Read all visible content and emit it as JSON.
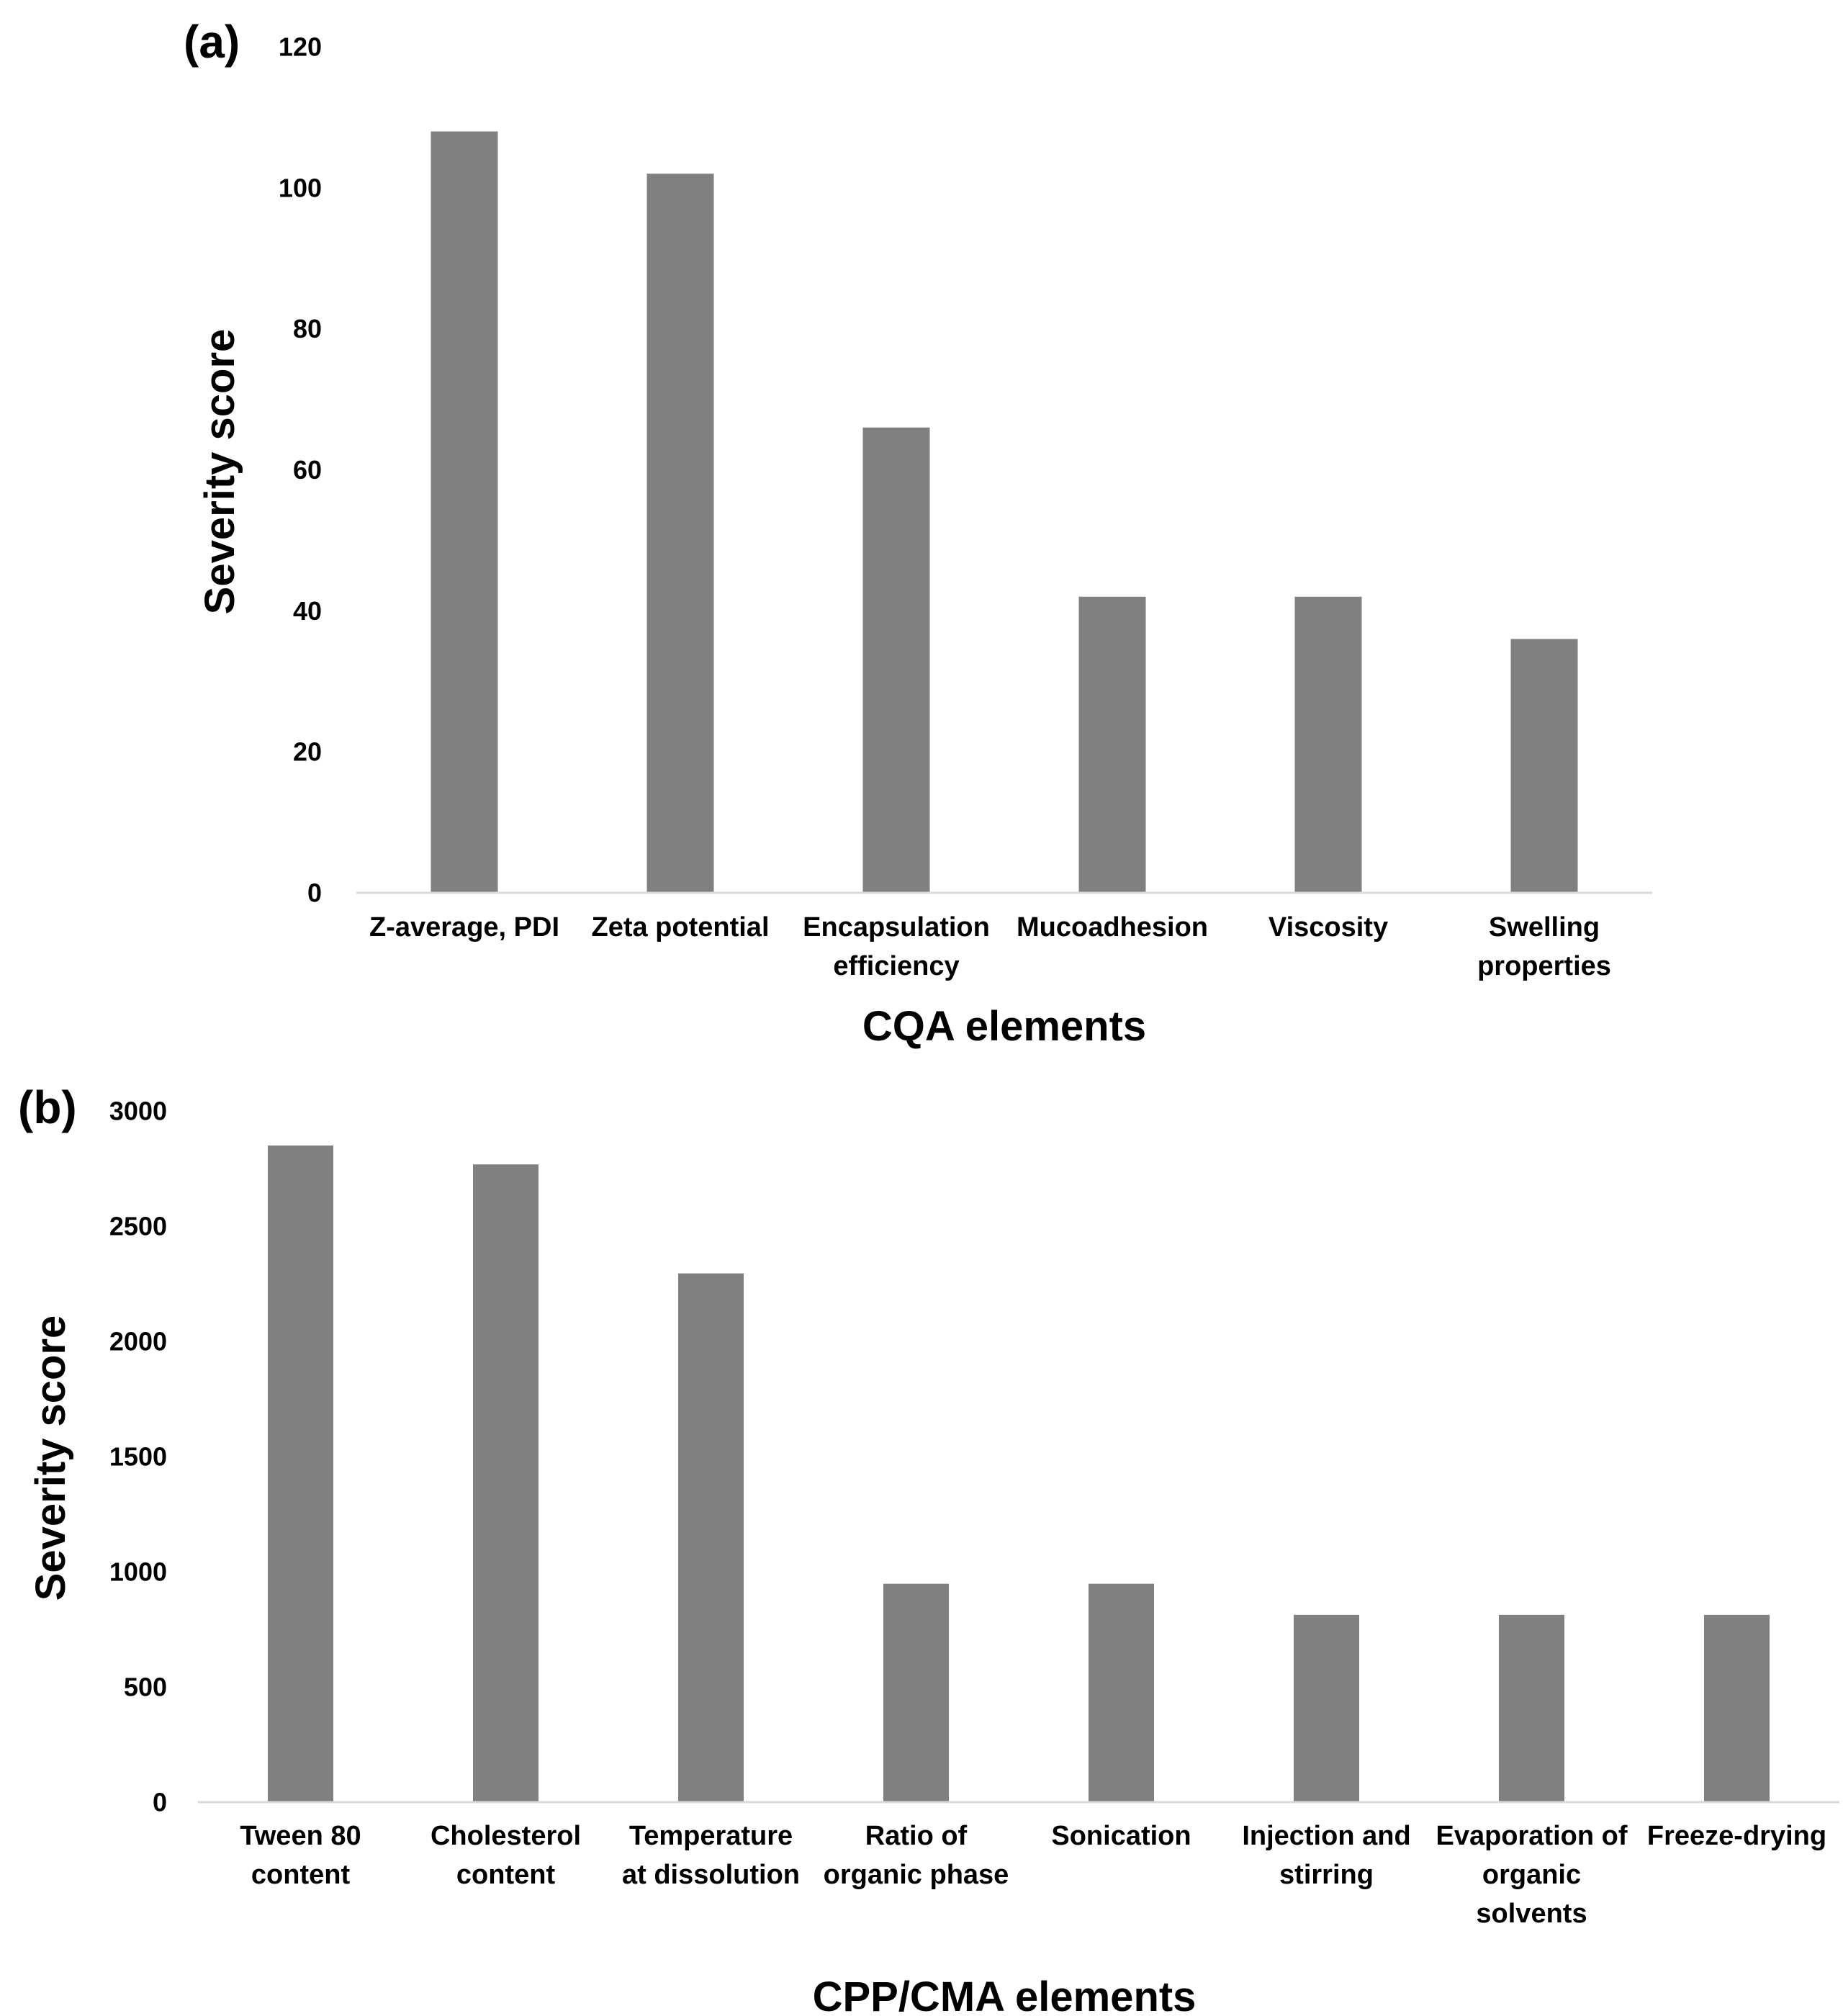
{
  "chart_data": [
    {
      "type": "bar",
      "panel_label": "(a)",
      "title": "",
      "xlabel": "CQA elements",
      "ylabel": "Severity score",
      "ylim": [
        0,
        120
      ],
      "yticks": [
        0,
        20,
        40,
        60,
        80,
        100,
        120
      ],
      "grid": false,
      "categories": [
        [
          "Z-average, PDI"
        ],
        [
          "Zeta potential"
        ],
        [
          "Encapsulation",
          "efficiency"
        ],
        [
          "Mucoadhesion"
        ],
        [
          "Viscosity"
        ],
        [
          "Swelling",
          "properties"
        ]
      ],
      "values": [
        108,
        102,
        66,
        42,
        42,
        36
      ],
      "bar_color": "#808080"
    },
    {
      "type": "bar",
      "panel_label": "(b)",
      "title": "",
      "xlabel": "CPP/CMA elements",
      "ylabel": "Severity score",
      "ylim": [
        0,
        3000
      ],
      "yticks": [
        0,
        500,
        1000,
        1500,
        2000,
        2500,
        3000
      ],
      "grid": false,
      "categories": [
        [
          "Tween 80",
          "content"
        ],
        [
          "Cholesterol",
          "content"
        ],
        [
          "Temperature",
          "at dissolution"
        ],
        [
          "Ratio of",
          "organic phase"
        ],
        [
          "Sonication"
        ],
        [
          "Injection and",
          "stirring"
        ],
        [
          "Evaporation of",
          "organic",
          "solvents"
        ],
        [
          "Freeze-drying"
        ]
      ],
      "values": [
        2850,
        2768,
        2295,
        948,
        948,
        813,
        813,
        813
      ],
      "bar_color": "#808080"
    }
  ],
  "colors": {
    "bar": "#808080",
    "axis": "#d9d9d9",
    "text": "#000000"
  }
}
